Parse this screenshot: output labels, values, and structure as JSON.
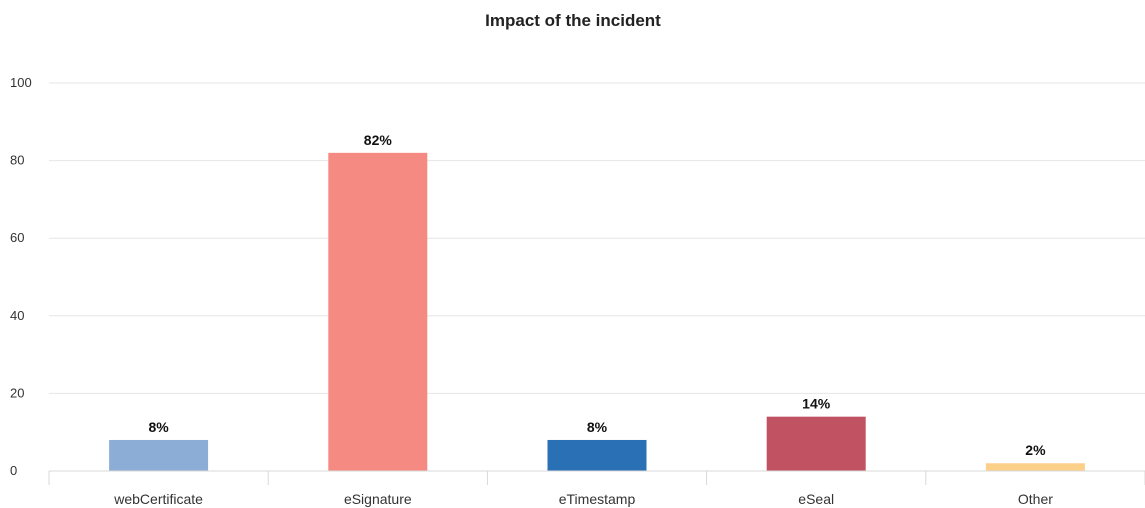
{
  "chart_data": {
    "type": "bar",
    "title": "Impact of the incident",
    "xlabel": "",
    "ylabel": "",
    "categories": [
      "webCertificate",
      "eSignature",
      "eTimestamp",
      "eSeal",
      "Other"
    ],
    "values": [
      8,
      82,
      8,
      14,
      2
    ],
    "data_labels": [
      "8%",
      "82%",
      "8%",
      "14%",
      "2%"
    ],
    "colors": [
      "#8cadd6",
      "#f58a82",
      "#2a70b5",
      "#c15262",
      "#fdd08a"
    ],
    "ylim": [
      0,
      100
    ],
    "yticks": [
      0,
      20,
      40,
      60,
      80,
      100
    ],
    "grid": true,
    "legend": "none"
  }
}
